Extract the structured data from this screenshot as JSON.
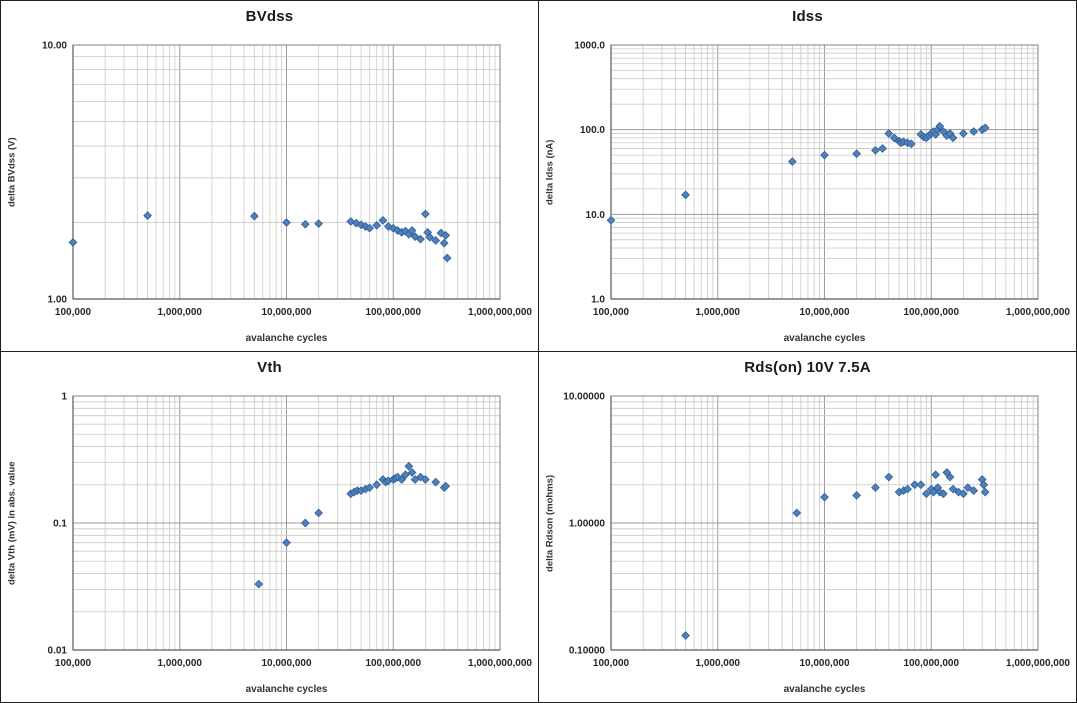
{
  "shared": {
    "xlim": [
      100000,
      1000000000
    ],
    "x_ticks": [
      "100,000",
      "1,000,000",
      "10,000,000",
      "100,000,000",
      "1,000,000,000"
    ],
    "marker_color": "#4f81bd",
    "marker_edge_color": "#2f5e93",
    "grid_minor_color": "#c9c9c9",
    "grid_major_color": "#9c9c9c",
    "plot_border_color": "#808080",
    "axis_color": "#595959"
  },
  "chart_data": [
    {
      "type": "scatter",
      "title": "BVdss",
      "xlabel": "avalanche cycles",
      "ylabel": "delta BVdss (V)",
      "ylim": [
        1,
        10
      ],
      "y_ticks": [
        {
          "v": 1,
          "label": "1.00"
        },
        {
          "v": 10,
          "label": "10.00"
        }
      ],
      "legend": "none",
      "grid": "log-log",
      "points": [
        [
          100000,
          1.67
        ],
        [
          500000,
          2.13
        ],
        [
          5000000,
          2.12
        ],
        [
          10000000,
          2.0
        ],
        [
          15000000,
          1.97
        ],
        [
          20000000,
          1.98
        ],
        [
          40000000,
          2.02
        ],
        [
          45000000,
          1.99
        ],
        [
          50000000,
          1.96
        ],
        [
          55000000,
          1.93
        ],
        [
          60000000,
          1.9
        ],
        [
          70000000,
          1.95
        ],
        [
          80000000,
          2.04
        ],
        [
          90000000,
          1.93
        ],
        [
          100000000,
          1.9
        ],
        [
          110000000,
          1.86
        ],
        [
          120000000,
          1.83
        ],
        [
          130000000,
          1.85
        ],
        [
          140000000,
          1.8
        ],
        [
          150000000,
          1.86
        ],
        [
          160000000,
          1.76
        ],
        [
          180000000,
          1.72
        ],
        [
          200000000,
          2.16
        ],
        [
          210000000,
          1.83
        ],
        [
          220000000,
          1.75
        ],
        [
          250000000,
          1.7
        ],
        [
          280000000,
          1.82
        ],
        [
          300000000,
          1.66
        ],
        [
          310000000,
          1.78
        ],
        [
          320000000,
          1.45
        ]
      ]
    },
    {
      "type": "scatter",
      "title": "Idss",
      "xlabel": "avalanche cycles",
      "ylabel": "delta Idss (nA)",
      "ylim": [
        1,
        1000
      ],
      "y_ticks": [
        {
          "v": 1,
          "label": "1.0"
        },
        {
          "v": 10,
          "label": "10.0"
        },
        {
          "v": 100,
          "label": "100.0"
        },
        {
          "v": 1000,
          "label": "1000.0"
        }
      ],
      "legend": "none",
      "grid": "log-log",
      "points": [
        [
          100000,
          8.5
        ],
        [
          500000,
          17
        ],
        [
          5000000,
          42
        ],
        [
          10000000,
          50
        ],
        [
          20000000,
          52
        ],
        [
          30000000,
          57
        ],
        [
          35000000,
          60
        ],
        [
          40000000,
          90
        ],
        [
          45000000,
          80
        ],
        [
          50000000,
          73
        ],
        [
          52000000,
          70
        ],
        [
          55000000,
          72
        ],
        [
          60000000,
          70
        ],
        [
          65000000,
          68
        ],
        [
          80000000,
          88
        ],
        [
          85000000,
          82
        ],
        [
          90000000,
          80
        ],
        [
          95000000,
          85
        ],
        [
          100000000,
          90
        ],
        [
          105000000,
          95
        ],
        [
          110000000,
          88
        ],
        [
          115000000,
          100
        ],
        [
          120000000,
          110
        ],
        [
          130000000,
          95
        ],
        [
          140000000,
          85
        ],
        [
          150000000,
          90
        ],
        [
          160000000,
          80
        ],
        [
          200000000,
          90
        ],
        [
          250000000,
          95
        ],
        [
          300000000,
          100
        ],
        [
          320000000,
          105
        ]
      ]
    },
    {
      "type": "scatter",
      "title": "Vth",
      "xlabel": "avalanche cycles",
      "ylabel": "delta Vth (mV) in abs. value",
      "ylim": [
        0.01,
        1
      ],
      "y_ticks": [
        {
          "v": 0.01,
          "label": "0.01"
        },
        {
          "v": 0.1,
          "label": "0.1"
        },
        {
          "v": 1,
          "label": "1"
        }
      ],
      "legend": "none",
      "grid": "log-log",
      "points": [
        [
          5500000,
          0.033
        ],
        [
          10000000,
          0.07
        ],
        [
          15000000,
          0.1
        ],
        [
          20000000,
          0.12
        ],
        [
          40000000,
          0.17
        ],
        [
          43000000,
          0.175
        ],
        [
          46000000,
          0.18
        ],
        [
          50000000,
          0.18
        ],
        [
          55000000,
          0.185
        ],
        [
          60000000,
          0.19
        ],
        [
          70000000,
          0.2
        ],
        [
          80000000,
          0.22
        ],
        [
          85000000,
          0.21
        ],
        [
          90000000,
          0.215
        ],
        [
          100000000,
          0.22
        ],
        [
          105000000,
          0.225
        ],
        [
          110000000,
          0.23
        ],
        [
          120000000,
          0.22
        ],
        [
          130000000,
          0.24
        ],
        [
          140000000,
          0.28
        ],
        [
          150000000,
          0.25
        ],
        [
          160000000,
          0.22
        ],
        [
          180000000,
          0.23
        ],
        [
          200000000,
          0.22
        ],
        [
          250000000,
          0.21
        ],
        [
          300000000,
          0.19
        ],
        [
          310000000,
          0.195
        ]
      ]
    },
    {
      "type": "scatter",
      "title": "Rds(on) 10V 7.5A",
      "xlabel": "avalanche cycles",
      "ylabel": "delta Rdson (mohms)",
      "ylim": [
        0.1,
        10
      ],
      "y_ticks": [
        {
          "v": 0.1,
          "label": "0.10000"
        },
        {
          "v": 1,
          "label": "1.00000"
        },
        {
          "v": 10,
          "label": "10.00000"
        }
      ],
      "legend": "none",
      "grid": "log-log",
      "points": [
        [
          500000,
          0.13
        ],
        [
          5500000,
          1.2
        ],
        [
          10000000,
          1.6
        ],
        [
          20000000,
          1.65
        ],
        [
          30000000,
          1.9
        ],
        [
          40000000,
          2.3
        ],
        [
          50000000,
          1.75
        ],
        [
          55000000,
          1.8
        ],
        [
          60000000,
          1.85
        ],
        [
          70000000,
          2.0
        ],
        [
          80000000,
          2.0
        ],
        [
          90000000,
          1.7
        ],
        [
          100000000,
          1.85
        ],
        [
          105000000,
          1.75
        ],
        [
          110000000,
          2.4
        ],
        [
          115000000,
          1.9
        ],
        [
          120000000,
          1.75
        ],
        [
          130000000,
          1.7
        ],
        [
          140000000,
          2.5
        ],
        [
          150000000,
          2.3
        ],
        [
          160000000,
          1.85
        ],
        [
          180000000,
          1.75
        ],
        [
          200000000,
          1.7
        ],
        [
          220000000,
          1.9
        ],
        [
          250000000,
          1.8
        ],
        [
          300000000,
          2.2
        ],
        [
          310000000,
          2.0
        ],
        [
          320000000,
          1.75
        ]
      ]
    }
  ]
}
